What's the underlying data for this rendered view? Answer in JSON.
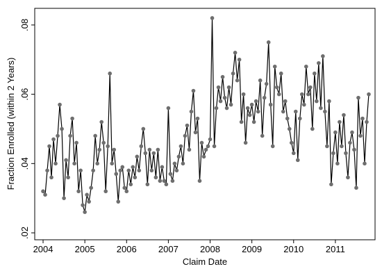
{
  "chart_data": {
    "type": "line",
    "xlabel": "Claim Date",
    "ylabel": "Fraction Enrolled (within 2 Years)",
    "line_color": "#000000",
    "marker_color": "#6e6e6e",
    "xlim": [
      2003.8,
      2011.95
    ],
    "ylim": [
      0.018,
      0.0848
    ],
    "xticks": [
      2004,
      2005,
      2006,
      2007,
      2008,
      2009,
      2010,
      2011
    ],
    "yticks": [
      {
        "value": 0.02,
        "label": ".02"
      },
      {
        "value": 0.04,
        "label": ".04"
      },
      {
        "value": 0.06,
        "label": ".06"
      },
      {
        "value": 0.08,
        "label": ".08"
      }
    ],
    "x": [
      2004.0,
      2004.05,
      2004.1,
      2004.15,
      2004.2,
      2004.25,
      2004.3,
      2004.35,
      2004.4,
      2004.45,
      2004.5,
      2004.55,
      2004.6,
      2004.65,
      2004.7,
      2004.75,
      2004.8,
      2004.85,
      2004.9,
      2004.95,
      2005.0,
      2005.05,
      2005.1,
      2005.15,
      2005.2,
      2005.25,
      2005.3,
      2005.35,
      2005.4,
      2005.45,
      2005.5,
      2005.55,
      2005.6,
      2005.65,
      2005.7,
      2005.75,
      2005.8,
      2005.85,
      2005.9,
      2005.95,
      2006.0,
      2006.05,
      2006.1,
      2006.15,
      2006.2,
      2006.25,
      2006.3,
      2006.35,
      2006.4,
      2006.45,
      2006.5,
      2006.55,
      2006.6,
      2006.65,
      2006.7,
      2006.75,
      2006.8,
      2006.85,
      2006.9,
      2006.95,
      2007.0,
      2007.05,
      2007.1,
      2007.15,
      2007.2,
      2007.25,
      2007.3,
      2007.35,
      2007.4,
      2007.45,
      2007.5,
      2007.55,
      2007.6,
      2007.65,
      2007.7,
      2007.75,
      2007.8,
      2007.85,
      2007.9,
      2007.95,
      2008.0,
      2008.05,
      2008.1,
      2008.15,
      2008.2,
      2008.25,
      2008.3,
      2008.35,
      2008.4,
      2008.45,
      2008.5,
      2008.55,
      2008.6,
      2008.65,
      2008.7,
      2008.75,
      2008.8,
      2008.85,
      2008.9,
      2008.95,
      2009.0,
      2009.05,
      2009.1,
      2009.15,
      2009.2,
      2009.25,
      2009.3,
      2009.35,
      2009.4,
      2009.45,
      2009.5,
      2009.55,
      2009.6,
      2009.65,
      2009.7,
      2009.75,
      2009.8,
      2009.85,
      2009.9,
      2009.95,
      2010.0,
      2010.05,
      2010.1,
      2010.15,
      2010.2,
      2010.25,
      2010.3,
      2010.35,
      2010.4,
      2010.45,
      2010.5,
      2010.55,
      2010.6,
      2010.65,
      2010.7,
      2010.75,
      2010.8,
      2010.85,
      2010.9,
      2010.95,
      2011.0,
      2011.05,
      2011.1,
      2011.15,
      2011.2,
      2011.25,
      2011.3,
      2011.35,
      2011.4,
      2011.45,
      2011.5,
      2011.55,
      2011.6,
      2011.65,
      2011.7,
      2011.75,
      2011.8
    ],
    "values": [
      0.032,
      0.031,
      0.038,
      0.045,
      0.036,
      0.047,
      0.04,
      0.048,
      0.057,
      0.05,
      0.03,
      0.041,
      0.036,
      0.048,
      0.053,
      0.04,
      0.046,
      0.032,
      0.038,
      0.028,
      0.026,
      0.031,
      0.029,
      0.033,
      0.038,
      0.048,
      0.04,
      0.044,
      0.052,
      0.046,
      0.032,
      0.045,
      0.066,
      0.04,
      0.044,
      0.037,
      0.029,
      0.038,
      0.039,
      0.033,
      0.032,
      0.038,
      0.034,
      0.039,
      0.036,
      0.042,
      0.038,
      0.045,
      0.05,
      0.043,
      0.034,
      0.044,
      0.038,
      0.043,
      0.036,
      0.044,
      0.035,
      0.039,
      0.035,
      0.034,
      0.056,
      0.037,
      0.035,
      0.04,
      0.038,
      0.042,
      0.045,
      0.04,
      0.048,
      0.051,
      0.044,
      0.055,
      0.061,
      0.049,
      0.053,
      0.035,
      0.046,
      0.042,
      0.044,
      0.045,
      0.047,
      0.082,
      0.045,
      0.056,
      0.062,
      0.058,
      0.065,
      0.059,
      0.056,
      0.062,
      0.057,
      0.066,
      0.072,
      0.064,
      0.07,
      0.052,
      0.06,
      0.046,
      0.056,
      0.054,
      0.057,
      0.052,
      0.058,
      0.055,
      0.064,
      0.048,
      0.059,
      0.063,
      0.075,
      0.057,
      0.045,
      0.068,
      0.062,
      0.06,
      0.066,
      0.055,
      0.058,
      0.053,
      0.05,
      0.046,
      0.043,
      0.055,
      0.041,
      0.053,
      0.06,
      0.057,
      0.068,
      0.06,
      0.062,
      0.05,
      0.066,
      0.058,
      0.069,
      0.056,
      0.071,
      0.055,
      0.045,
      0.058,
      0.034,
      0.043,
      0.049,
      0.04,
      0.052,
      0.045,
      0.054,
      0.043,
      0.036,
      0.046,
      0.049,
      0.044,
      0.033,
      0.059,
      0.048,
      0.053,
      0.04,
      0.052,
      0.06
    ]
  }
}
